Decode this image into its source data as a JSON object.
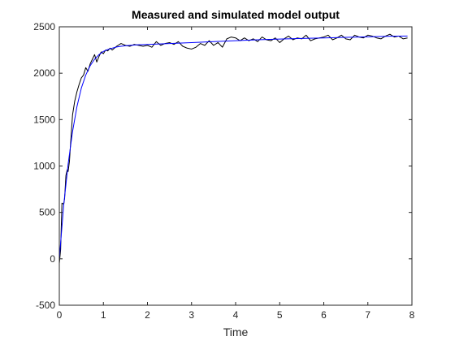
{
  "chart_data": {
    "type": "line",
    "title": "Measured and simulated model output",
    "xlabel": "Time",
    "ylabel": "",
    "xlim": [
      0,
      8
    ],
    "ylim": [
      -500,
      2500
    ],
    "xticks": [
      0,
      1,
      2,
      3,
      4,
      5,
      6,
      7,
      8
    ],
    "yticks": [
      -500,
      0,
      500,
      1000,
      1500,
      2000,
      2500
    ],
    "grid": false,
    "legend": "none",
    "colors": {
      "measured": "#000000",
      "simulated": "#0000ff",
      "axes": "#262626"
    },
    "series": [
      {
        "key": "measured",
        "x": [
          0,
          0.03,
          0.06,
          0.1,
          0.12,
          0.15,
          0.18,
          0.2,
          0.23,
          0.25,
          0.3,
          0.35,
          0.4,
          0.45,
          0.5,
          0.55,
          0.6,
          0.65,
          0.7,
          0.75,
          0.8,
          0.85,
          0.9,
          0.95,
          1.0,
          1.05,
          1.1,
          1.15,
          1.2,
          1.3,
          1.4,
          1.5,
          1.6,
          1.7,
          1.8,
          1.9,
          2.0,
          2.1,
          2.2,
          2.3,
          2.4,
          2.5,
          2.6,
          2.7,
          2.8,
          2.9,
          3.0,
          3.1,
          3.2,
          3.3,
          3.4,
          3.5,
          3.6,
          3.7,
          3.8,
          3.9,
          4.0,
          4.1,
          4.2,
          4.3,
          4.4,
          4.5,
          4.6,
          4.7,
          4.8,
          4.9,
          5.0,
          5.1,
          5.2,
          5.3,
          5.4,
          5.5,
          5.6,
          5.7,
          5.8,
          5.9,
          6.0,
          6.1,
          6.2,
          6.3,
          6.4,
          6.5,
          6.6,
          6.7,
          6.8,
          6.9,
          7.0,
          7.1,
          7.2,
          7.3,
          7.4,
          7.5,
          7.6,
          7.7,
          7.8,
          7.9
        ],
        "y": [
          -50,
          100,
          600,
          590,
          650,
          900,
          960,
          940,
          1050,
          1200,
          1550,
          1700,
          1800,
          1880,
          1950,
          1980,
          2060,
          2020,
          2100,
          2150,
          2200,
          2120,
          2180,
          2230,
          2210,
          2250,
          2240,
          2270,
          2250,
          2290,
          2320,
          2300,
          2290,
          2310,
          2300,
          2290,
          2300,
          2280,
          2340,
          2300,
          2320,
          2330,
          2310,
          2340,
          2290,
          2270,
          2260,
          2280,
          2320,
          2300,
          2350,
          2300,
          2330,
          2280,
          2370,
          2390,
          2380,
          2350,
          2380,
          2350,
          2370,
          2340,
          2390,
          2360,
          2350,
          2380,
          2330,
          2370,
          2400,
          2360,
          2380,
          2370,
          2410,
          2350,
          2370,
          2380,
          2390,
          2410,
          2360,
          2380,
          2410,
          2370,
          2360,
          2410,
          2390,
          2380,
          2410,
          2400,
          2380,
          2370,
          2400,
          2420,
          2390,
          2400,
          2370,
          2380
        ]
      },
      {
        "key": "simulated",
        "x": [
          0,
          0.1,
          0.2,
          0.3,
          0.4,
          0.5,
          0.6,
          0.7,
          0.8,
          0.9,
          1.0,
          1.1,
          1.2,
          1.3,
          1.4,
          1.5,
          1.6,
          1.8,
          2.0,
          2.5,
          3.0,
          3.5,
          4.0,
          4.5,
          5.0,
          5.5,
          6.0,
          6.5,
          7.0,
          7.5,
          7.9
        ],
        "y": [
          0,
          580,
          1020,
          1370,
          1640,
          1840,
          1980,
          2080,
          2150,
          2200,
          2235,
          2255,
          2270,
          2282,
          2290,
          2296,
          2300,
          2306,
          2310,
          2320,
          2330,
          2340,
          2350,
          2360,
          2368,
          2374,
          2380,
          2386,
          2392,
          2398,
          2400
        ]
      }
    ]
  }
}
